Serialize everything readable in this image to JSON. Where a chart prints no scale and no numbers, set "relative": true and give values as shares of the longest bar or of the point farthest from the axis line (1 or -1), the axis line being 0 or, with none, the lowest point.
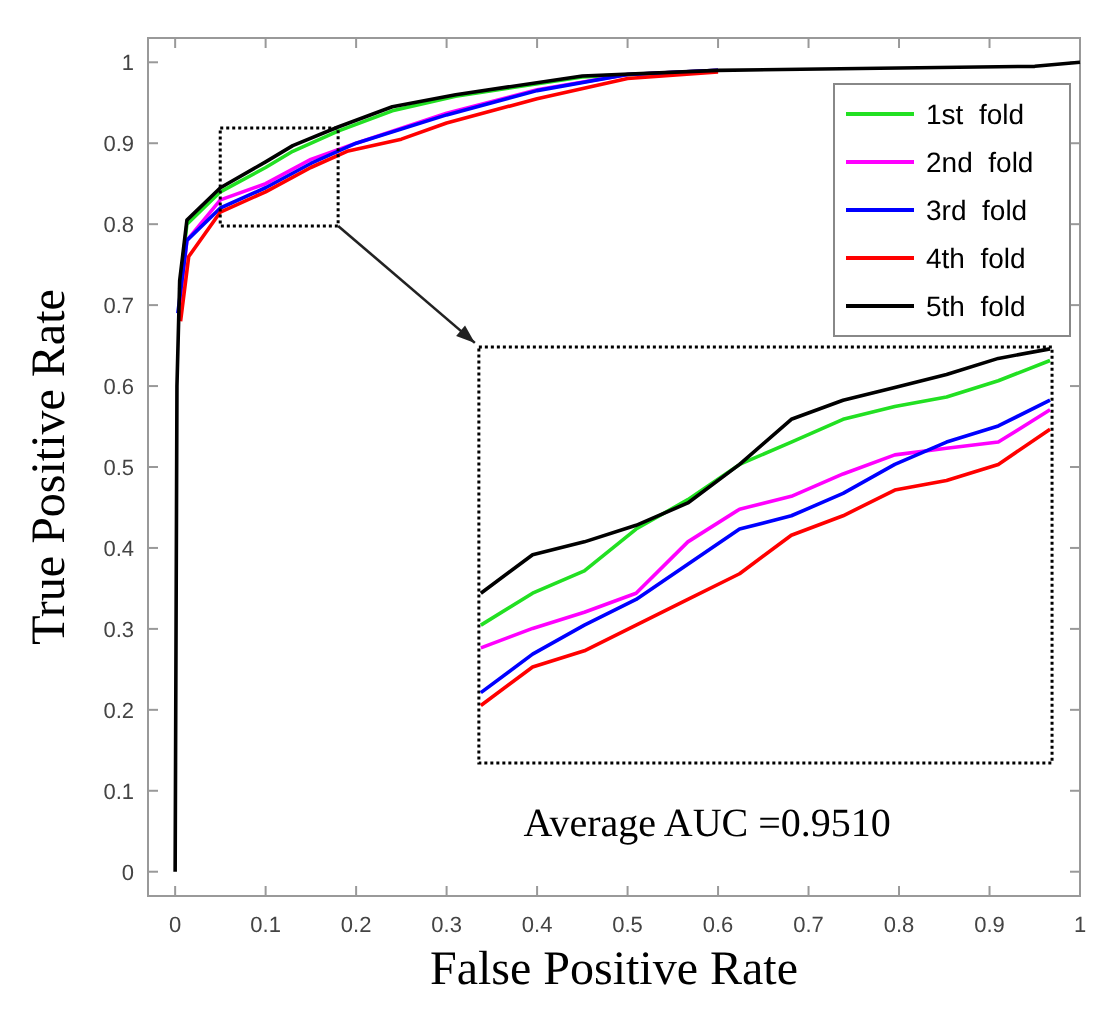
{
  "chart_data": [
    {
      "type": "line",
      "xlabel": "False Positive Rate",
      "ylabel": "True Positive Rate",
      "xlim": [
        -0.03,
        1
      ],
      "ylim": [
        -0.03,
        1.03
      ],
      "xticks": [
        0,
        0.1,
        0.2,
        0.3,
        0.4,
        0.5,
        0.6,
        0.7,
        0.8,
        0.9,
        1
      ],
      "yticks": [
        0,
        0.1,
        0.2,
        0.3,
        0.4,
        0.5,
        0.6,
        0.7,
        0.8,
        0.9,
        1
      ],
      "legend": "top right",
      "line_style": "solid",
      "annotations": [
        "Average AUC =0.9510"
      ],
      "series": [
        {
          "name": "1st  fold",
          "color": "#22e022",
          "x": [
            0.005,
            0.013,
            0.05,
            0.1,
            0.13,
            0.18,
            0.24,
            0.31,
            0.45,
            0.6
          ],
          "values": [
            0.72,
            0.8,
            0.84,
            0.87,
            0.89,
            0.915,
            0.94,
            0.958,
            0.982,
            0.99
          ]
        },
        {
          "name": "2nd  fold",
          "color": "#ff00ff",
          "x": [
            0.005,
            0.013,
            0.05,
            0.1,
            0.15,
            0.2,
            0.3,
            0.4,
            0.5,
            0.6
          ],
          "values": [
            0.7,
            0.78,
            0.83,
            0.85,
            0.88,
            0.9,
            0.937,
            0.966,
            0.985,
            0.99
          ]
        },
        {
          "name": "3rd  fold",
          "color": "#0000ff",
          "x": [
            0.003,
            0.013,
            0.05,
            0.1,
            0.15,
            0.2,
            0.3,
            0.4,
            0.5,
            0.6
          ],
          "values": [
            0.69,
            0.78,
            0.82,
            0.845,
            0.875,
            0.9,
            0.935,
            0.965,
            0.985,
            0.99
          ]
        },
        {
          "name": "4th  fold",
          "color": "#ff0000",
          "x": [
            0.006,
            0.015,
            0.05,
            0.1,
            0.15,
            0.19,
            0.25,
            0.3,
            0.4,
            0.5,
            0.6
          ],
          "values": [
            0.68,
            0.76,
            0.815,
            0.84,
            0.87,
            0.89,
            0.905,
            0.925,
            0.955,
            0.98,
            0.988
          ]
        },
        {
          "name": "5th  fold",
          "color": "#000000",
          "x": [
            0,
            0.002,
            0.005,
            0.013,
            0.05,
            0.1,
            0.13,
            0.18,
            0.24,
            0.31,
            0.45,
            0.6,
            0.8,
            0.95,
            1
          ],
          "values": [
            0,
            0.6,
            0.73,
            0.805,
            0.845,
            0.877,
            0.897,
            0.92,
            0.945,
            0.96,
            0.983,
            0.99,
            0.993,
            0.995,
            1
          ]
        }
      ]
    },
    {
      "type": "line",
      "relative": true,
      "line_style": "solid",
      "categories": [
        null,
        null,
        null,
        null,
        null,
        null,
        null,
        null,
        null,
        null,
        null,
        null
      ],
      "series": [
        {
          "color": "#22e022",
          "values": [
            0.333,
            0.41,
            0.464,
            0.565,
            0.636,
            0.721,
            0.775,
            0.83,
            0.861,
            0.884,
            0.923,
            0.972
          ]
        },
        {
          "color": "#ff00ff",
          "values": [
            0.278,
            0.325,
            0.364,
            0.41,
            0.534,
            0.613,
            0.644,
            0.698,
            0.744,
            0.76,
            0.775,
            0.853
          ]
        },
        {
          "color": "#0000ff",
          "values": [
            0.17,
            0.263,
            0.333,
            0.395,
            0.48,
            0.565,
            0.597,
            0.651,
            0.721,
            0.775,
            0.814,
            0.876
          ]
        },
        {
          "color": "#ff0000",
          "values": [
            0.139,
            0.232,
            0.271,
            0.333,
            0.395,
            0.457,
            0.55,
            0.597,
            0.659,
            0.682,
            0.721,
            0.806
          ]
        },
        {
          "color": "#000000",
          "values": [
            0.41,
            0.503,
            0.534,
            0.574,
            0.628,
            0.721,
            0.83,
            0.876,
            0.907,
            0.938,
            0.977,
            1
          ]
        }
      ]
    }
  ]
}
